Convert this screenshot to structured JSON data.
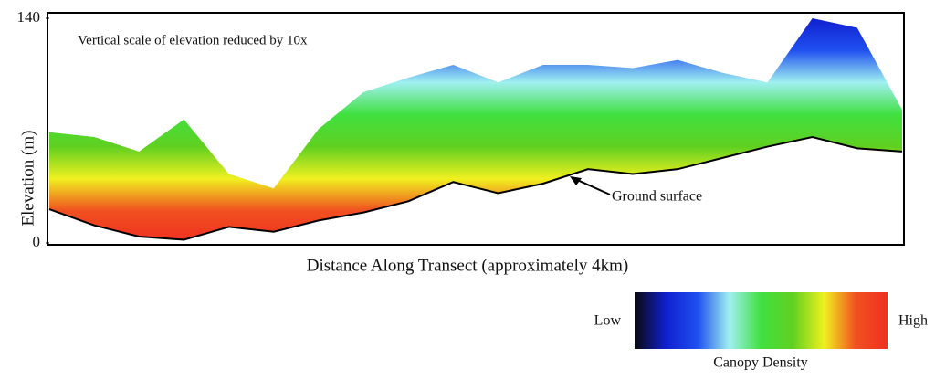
{
  "chart_data": {
    "type": "profile",
    "annotation": "Vertical scale of elevation reduced by 10x",
    "xlabel": "Distance Along Transect (approximately 4km)",
    "ylabel": "Elevation  (m)",
    "ground_label": "Ground surface",
    "categories": [
      null,
      null,
      null,
      null,
      null,
      null,
      null,
      null,
      null,
      null,
      null,
      null,
      null,
      null,
      null,
      null,
      null,
      null,
      null,
      null
    ],
    "series": [
      {
        "values": [
          21,
          11,
          4,
          2,
          10,
          7,
          14,
          19,
          26,
          38,
          31,
          37,
          46,
          43,
          46,
          53,
          60,
          66,
          59,
          57
        ],
        "color": "#000000"
      },
      {
        "values": [
          69,
          66,
          57,
          77,
          43,
          34,
          71,
          94,
          103,
          111,
          100,
          111,
          111,
          109,
          114,
          106,
          100,
          140,
          134,
          83
        ]
      }
    ],
    "ylim": [
      0,
      140
    ],
    "yticks": [
      0,
      140
    ],
    "colormap": [
      "#0a0a10",
      "#1020d0",
      "#2050f0",
      "#a0f0f0",
      "#40e040",
      "#60d020",
      "#f0f020",
      "#f05020",
      "#f03020"
    ],
    "colorbar": {
      "low": "Low",
      "high": "High",
      "label": "Canopy Density"
    }
  }
}
